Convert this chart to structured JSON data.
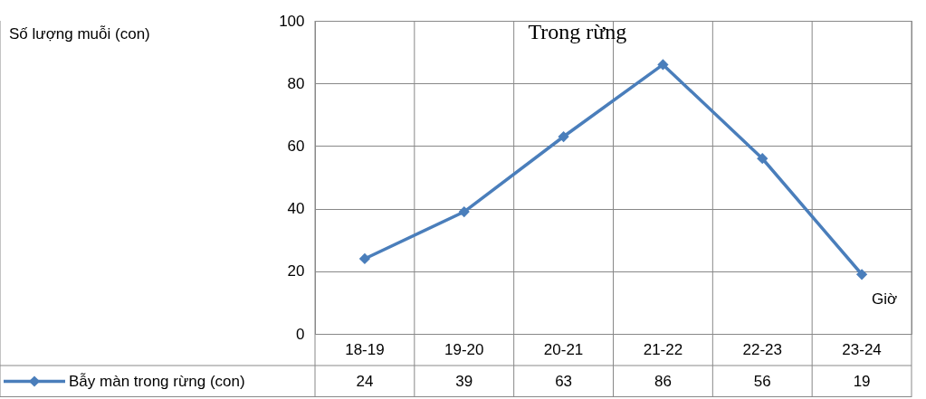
{
  "chart_data": {
    "type": "line",
    "title": "Trong rừng",
    "annotations": [
      "Số lượng muỗi (con)"
    ],
    "xlabel": "Giờ",
    "categories": [
      "18-19",
      "19-20",
      "20-21",
      "21-22",
      "22-23",
      "23-24"
    ],
    "series": [
      {
        "name": "Bẫy màn trong rừng (con)",
        "color": "#4a7ebb",
        "values": [
          24,
          39,
          63,
          86,
          56,
          19
        ]
      }
    ],
    "ylim": [
      0,
      100
    ],
    "yticks": [
      0,
      20,
      40,
      60,
      80,
      100
    ],
    "grid": true,
    "legend": "bottom",
    "marker": "diamond",
    "line_style": "solid",
    "data_labels": true
  }
}
